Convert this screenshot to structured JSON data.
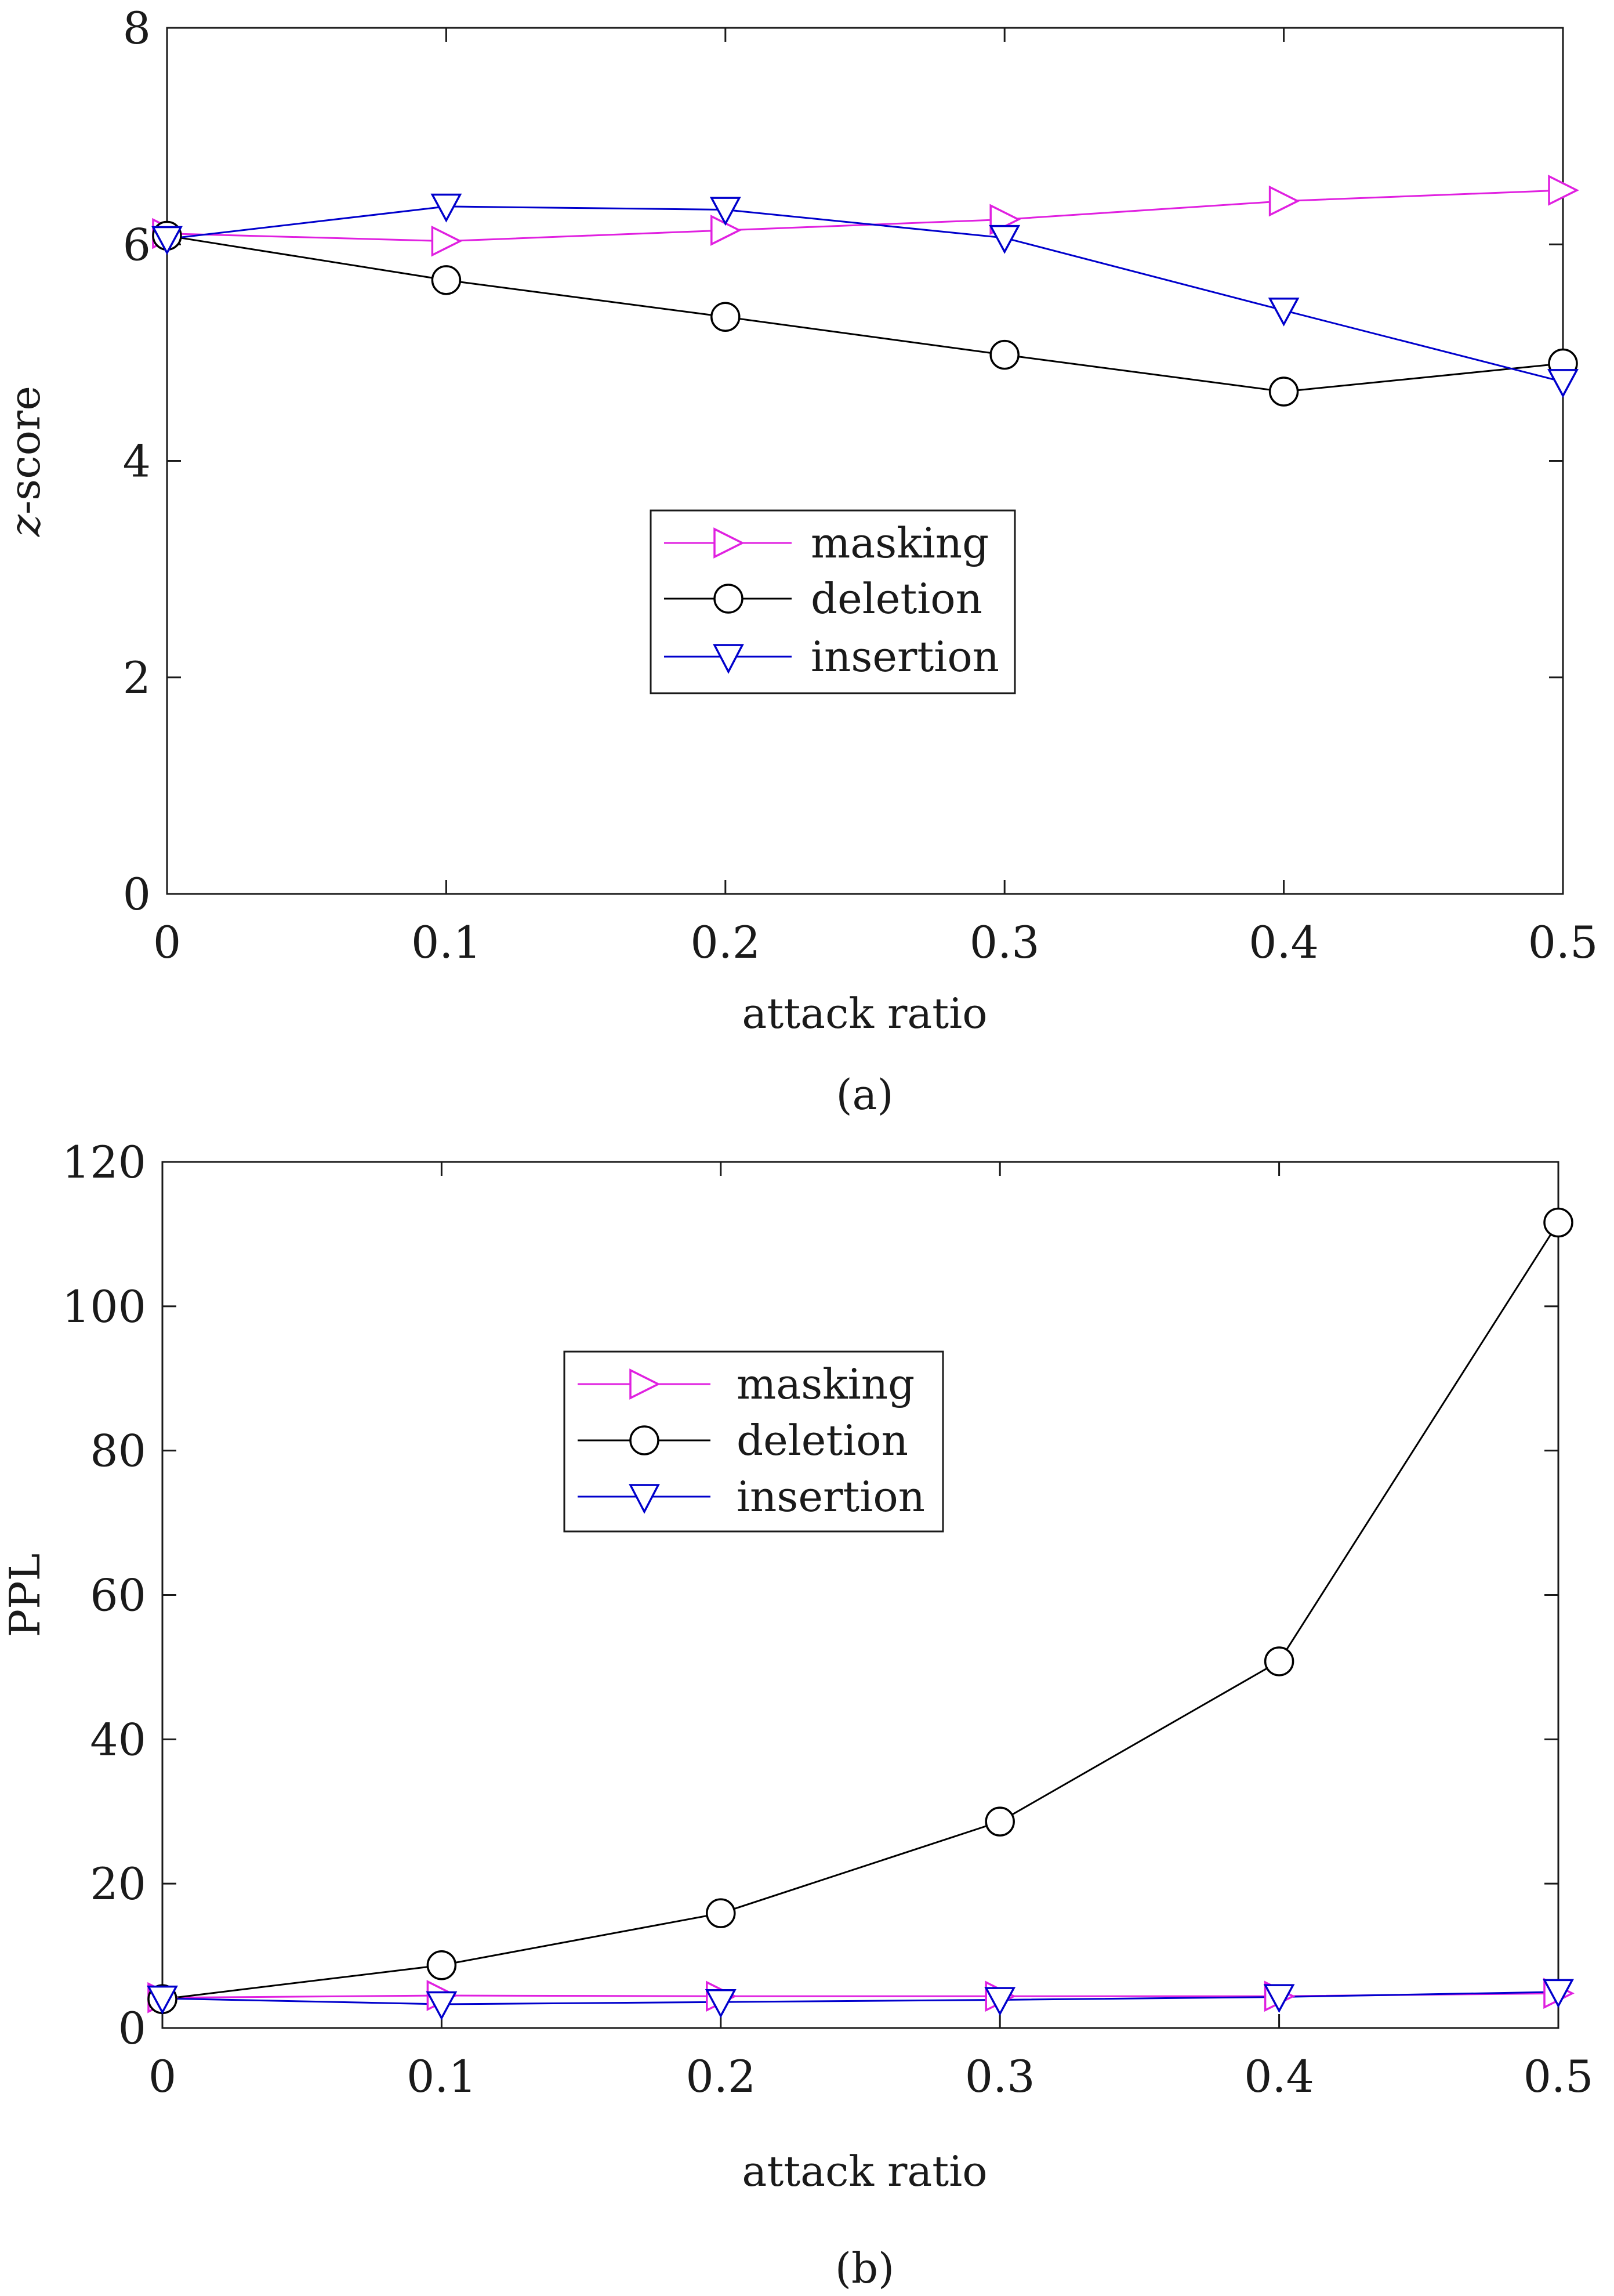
{
  "chart_data": [
    {
      "type": "line",
      "caption": "(a)",
      "xlabel": "attack ratio",
      "ylabel_italic": "z",
      "ylabel_rest": "-score",
      "x": [
        0,
        0.1,
        0.2,
        0.3,
        0.4,
        0.5
      ],
      "xlim": [
        0,
        0.5
      ],
      "ylim": [
        0,
        8
      ],
      "x_ticks": [
        "0",
        "0.1",
        "0.2",
        "0.3",
        "0.4",
        "0.5"
      ],
      "y_ticks": [
        "0",
        "2",
        "4",
        "6",
        "8"
      ],
      "legend_position": "center",
      "series": [
        {
          "name": "masking",
          "marker": "triangle-right",
          "color": "#e020e0",
          "values": [
            6.1,
            6.03,
            6.13,
            6.23,
            6.4,
            6.5
          ]
        },
        {
          "name": "deletion",
          "marker": "circle",
          "color": "#000000",
          "values": [
            6.08,
            5.67,
            5.33,
            4.98,
            4.64,
            4.9
          ]
        },
        {
          "name": "insertion",
          "marker": "triangle-down",
          "color": "#0000cc",
          "values": [
            6.05,
            6.35,
            6.32,
            6.06,
            5.39,
            4.73
          ]
        }
      ]
    },
    {
      "type": "line",
      "caption": "(b)",
      "xlabel": "attack ratio",
      "ylabel": "PPL",
      "x": [
        0,
        0.1,
        0.2,
        0.3,
        0.4,
        0.5
      ],
      "xlim": [
        0,
        0.5
      ],
      "ylim": [
        0,
        120
      ],
      "x_ticks": [
        "0",
        "0.1",
        "0.2",
        "0.3",
        "0.4",
        "0.5"
      ],
      "y_ticks": [
        "0",
        "20",
        "40",
        "60",
        "80",
        "100",
        "120"
      ],
      "legend_position": "top-center",
      "series": [
        {
          "name": "masking",
          "marker": "triangle-right",
          "color": "#e020e0",
          "values": [
            4.2,
            4.5,
            4.4,
            4.4,
            4.4,
            4.8
          ]
        },
        {
          "name": "deletion",
          "marker": "circle",
          "color": "#000000",
          "values": [
            4.0,
            8.7,
            15.9,
            28.6,
            50.8,
            111.6
          ]
        },
        {
          "name": "insertion",
          "marker": "triangle-down",
          "color": "#0000cc",
          "values": [
            4.1,
            3.3,
            3.6,
            3.9,
            4.3,
            5.0
          ]
        }
      ]
    }
  ]
}
